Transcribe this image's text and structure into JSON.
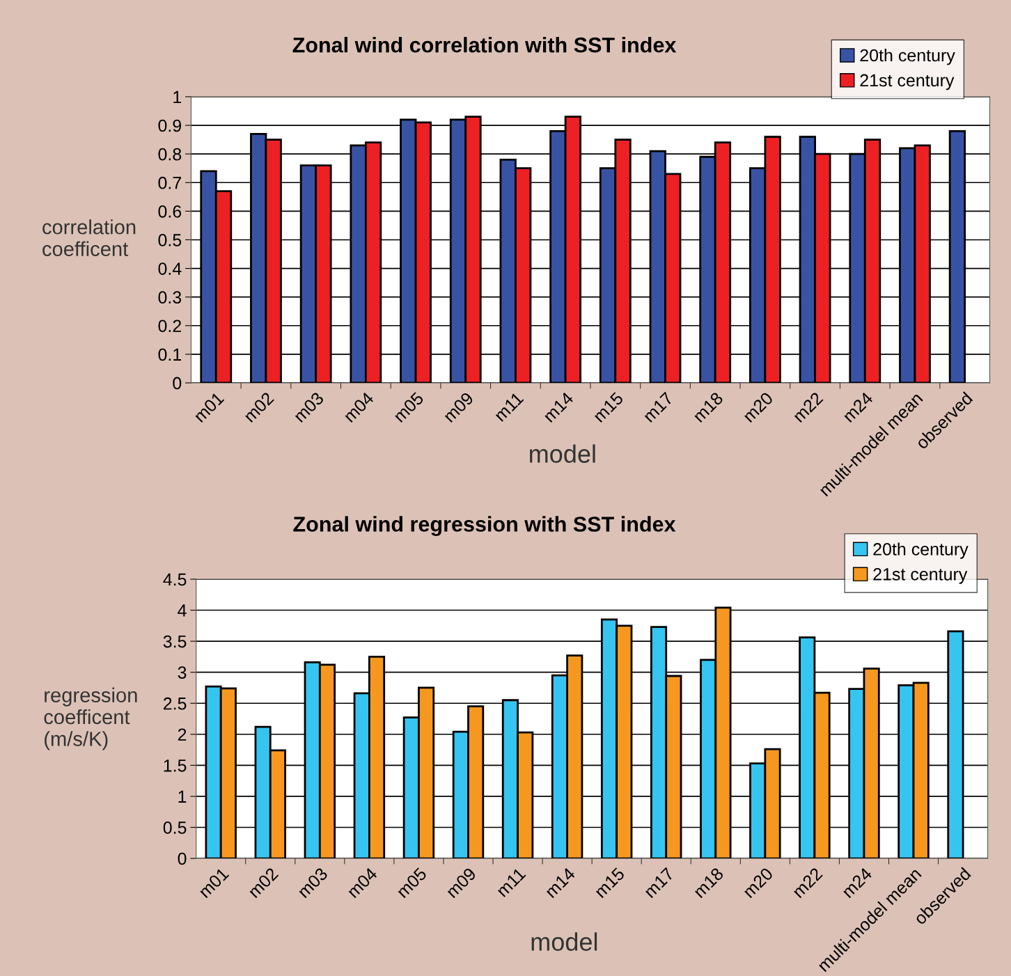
{
  "chart_data": [
    {
      "type": "bar",
      "title": "Zonal wind correlation with SST index",
      "xlabel": "model",
      "ylabel": "correlation\ncoefficent",
      "categories": [
        "m01",
        "m02",
        "m03",
        "m04",
        "m05",
        "m09",
        "m11",
        "m14",
        "m15",
        "m17",
        "m18",
        "m20",
        "m22",
        "m24",
        "multi-model mean",
        "observed"
      ],
      "series": [
        {
          "name": "20th century",
          "color": "#3953a4",
          "values": [
            0.74,
            0.87,
            0.76,
            0.83,
            0.92,
            0.92,
            0.78,
            0.88,
            0.75,
            0.81,
            0.79,
            0.75,
            0.86,
            0.8,
            0.82,
            0.88
          ]
        },
        {
          "name": "21st century",
          "color": "#ed2024",
          "values": [
            0.67,
            0.85,
            0.76,
            0.84,
            0.91,
            0.93,
            0.75,
            0.93,
            0.85,
            0.73,
            0.84,
            0.86,
            0.8,
            0.85,
            0.83,
            null
          ]
        }
      ],
      "ylim": [
        0,
        1
      ],
      "yticks": [
        0,
        0.1,
        0.2,
        0.3,
        0.4,
        0.5,
        0.6,
        0.7,
        0.8,
        0.9,
        1
      ],
      "grid": "y",
      "legend": "top right"
    },
    {
      "type": "bar",
      "title": "Zonal wind regression with SST index",
      "xlabel": "model",
      "ylabel": "regression\ncoefficent\n(m/s/K)",
      "categories": [
        "m01",
        "m02",
        "m03",
        "m04",
        "m05",
        "m09",
        "m11",
        "m14",
        "m15",
        "m17",
        "m18",
        "m20",
        "m22",
        "m24",
        "multi-model mean",
        "observed"
      ],
      "series": [
        {
          "name": "20th century",
          "color": "#36c5f0",
          "values": [
            2.77,
            2.12,
            3.16,
            2.66,
            2.27,
            2.04,
            2.55,
            2.95,
            3.85,
            3.73,
            3.2,
            1.53,
            3.56,
            2.73,
            2.79,
            3.66
          ]
        },
        {
          "name": "21st century",
          "color": "#f6981f",
          "values": [
            2.74,
            1.74,
            3.12,
            3.25,
            2.75,
            2.45,
            2.03,
            3.27,
            3.75,
            2.94,
            4.04,
            1.76,
            2.67,
            3.06,
            2.83,
            null
          ]
        }
      ],
      "ylim": [
        0,
        4.5
      ],
      "yticks": [
        0,
        0.5,
        1,
        1.5,
        2,
        2.5,
        3,
        3.5,
        4,
        4.5
      ],
      "grid": "y",
      "legend": "top right"
    }
  ]
}
